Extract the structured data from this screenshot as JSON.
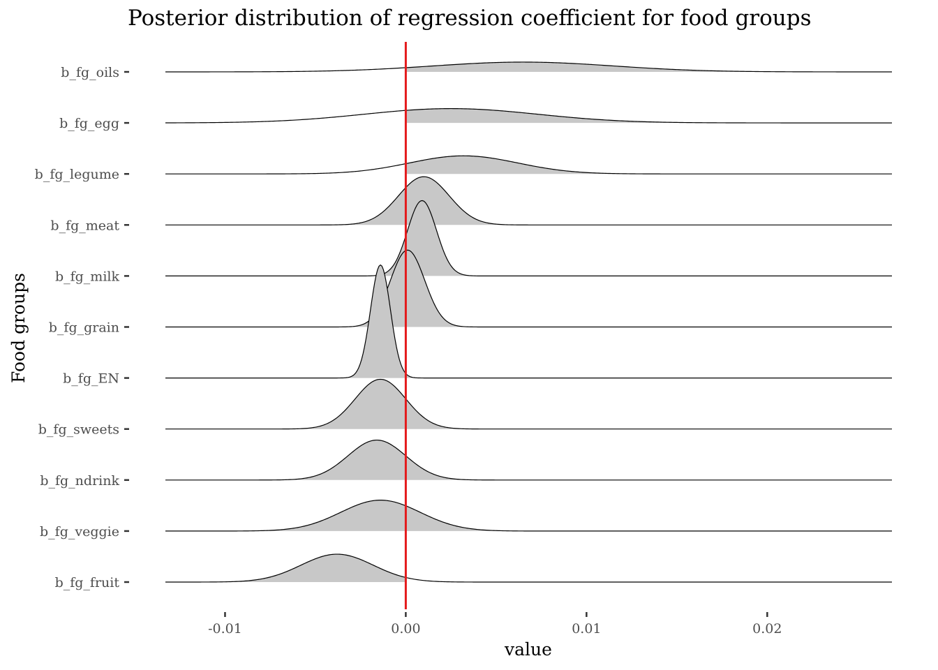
{
  "chart_data": {
    "type": "ridgeline",
    "title": "Posterior distribution of regression coefficient for food groups",
    "xlabel": "value",
    "ylabel": "Food groups",
    "xlim": [
      -0.0133,
      0.0269
    ],
    "x_ticks": [
      -0.01,
      0.0,
      0.01,
      0.02
    ],
    "x_tick_labels": [
      "-0.01",
      "0.00",
      "0.01",
      "0.02"
    ],
    "reference_line": {
      "x": 0.0,
      "color": "#e41a1c"
    },
    "fill_color": "#c8c8c8",
    "line_color": "#000000",
    "grid": false,
    "categories": [
      "b_fg_oils",
      "b_fg_egg",
      "b_fg_legume",
      "b_fg_meat",
      "b_fg_milk",
      "b_fg_grain",
      "b_fg_EN",
      "b_fg_sweets",
      "b_fg_ndrink",
      "b_fg_veggie",
      "b_fg_fruit"
    ],
    "series": [
      {
        "name": "b_fg_oils",
        "mean": 0.0065,
        "sd": 0.005,
        "peak": 0.13,
        "fill_from": 0.0,
        "fill_to": 0.0269
      },
      {
        "name": "b_fg_egg",
        "mean": 0.0025,
        "sd": 0.0048,
        "peak": 0.19,
        "fill_from": 0.0,
        "fill_to": 0.0269
      },
      {
        "name": "b_fg_legume",
        "mean": 0.0032,
        "sd": 0.003,
        "peak": 0.24,
        "fill_from": 0.0,
        "fill_to": 0.0269
      },
      {
        "name": "b_fg_meat",
        "mean": 0.001,
        "sd": 0.0014,
        "peak": 0.64,
        "fill_from": -0.0133,
        "fill_to": 0.0269
      },
      {
        "name": "b_fg_milk",
        "mean": 0.0009,
        "sd": 0.0008,
        "peak": 1.0,
        "fill_from": -0.0133,
        "fill_to": 0.0269
      },
      {
        "name": "b_fg_grain",
        "mean": 0.0001,
        "sd": 0.00095,
        "peak": 1.02,
        "fill_from": -0.0133,
        "fill_to": 0.0269
      },
      {
        "name": "b_fg_EN",
        "mean": -0.0014,
        "sd": 0.00055,
        "peak": 1.5,
        "fill_from": -0.0133,
        "fill_to": 0.0269
      },
      {
        "name": "b_fg_sweets",
        "mean": -0.0014,
        "sd": 0.0014,
        "peak": 0.66,
        "fill_from": -0.0133,
        "fill_to": 0.0269
      },
      {
        "name": "b_fg_ndrink",
        "mean": -0.0016,
        "sd": 0.0016,
        "peak": 0.53,
        "fill_from": -0.0133,
        "fill_to": 0.0269
      },
      {
        "name": "b_fg_veggie",
        "mean": -0.0014,
        "sd": 0.0022,
        "peak": 0.41,
        "fill_from": -0.0133,
        "fill_to": 0.0269
      },
      {
        "name": "b_fg_fruit",
        "mean": -0.0038,
        "sd": 0.002,
        "peak": 0.37,
        "fill_from": -0.0133,
        "fill_to": 0.0
      }
    ]
  }
}
